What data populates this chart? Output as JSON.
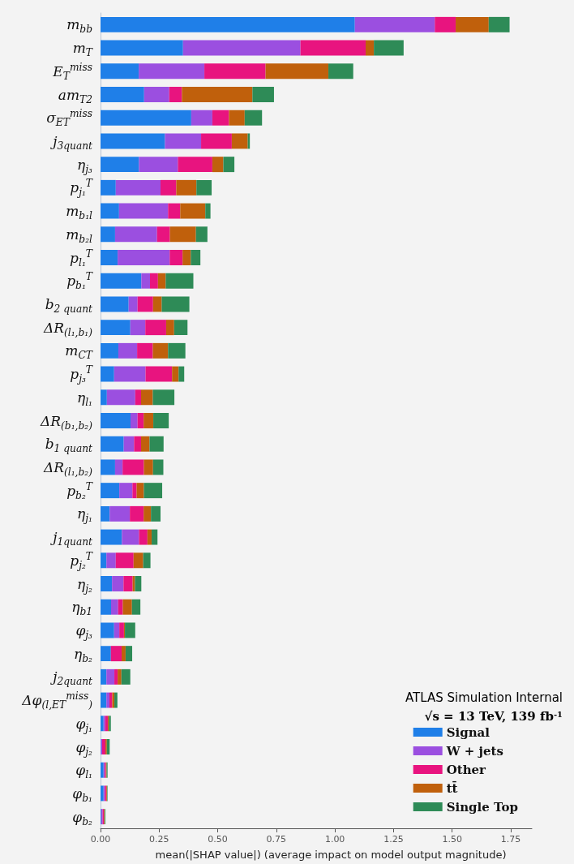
{
  "chart_data": {
    "type": "bar",
    "orientation": "horizontal",
    "stacked": true,
    "xlabel": "mean(|SHAP value|) (average impact on model output magnitude)",
    "categories": [
      "m$_{bb}$",
      "m$_{T}$",
      "E$_{T}$$^{miss}$",
      "am$_{T2}$",
      "σ$_{E}$$_{T}$$^{miss}$",
      "j$_{3quant}$",
      "η$_{j₃}$",
      "p$_{j₁}$$^{T}$",
      "m$_{b₁l}$",
      "m$_{b₂l}$",
      "p$_{l₁}$$^{T}$",
      "p$_{b₁}$$^{T}$",
      "b$_{2 quant}$",
      "ΔR$_{(l₁,b₁)}$",
      "m$_{CT}$",
      "p$_{j₃}$$^{T}$",
      "η$_{l₁}$",
      "ΔR$_{(b₁,b₂)}$",
      "b$_{1 quant}$",
      "ΔR$_{(l₁,b₂)}$",
      "p$_{b₂}$$^{T}$",
      "η$_{j₁}$",
      "j$_{1quant}$",
      "p$_{j₂}$$^{T}$",
      "η$_{j₂}$",
      "η$_{b1}$",
      "φ$_{j₃}$",
      "η$_{b₂}$",
      "j$_{2quant}$",
      "Δφ$_{(l,E}$$_{T}$$^{miss}$$_{)}$",
      "φ$_{j₁}$",
      "φ$_{j₂}$",
      "φ$_{l₁}$",
      "φ$_{b₁}$",
      "φ$_{b₂}$"
    ],
    "series": [
      {
        "name": "Signal",
        "color": "#1f7fe8",
        "values": [
          1.085,
          0.352,
          0.163,
          0.186,
          0.387,
          0.275,
          0.164,
          0.065,
          0.079,
          0.062,
          0.073,
          0.174,
          0.12,
          0.127,
          0.076,
          0.058,
          0.027,
          0.128,
          0.099,
          0.062,
          0.08,
          0.039,
          0.091,
          0.025,
          0.049,
          0.045,
          0.058,
          0.044,
          0.025,
          0.025,
          0.013,
          0.002,
          0.013,
          0.013,
          0.003
        ]
      },
      {
        "name": "W + jets",
        "color": "#9b4fe0",
        "values": [
          0.341,
          0.501,
          0.28,
          0.107,
          0.09,
          0.154,
          0.166,
          0.191,
          0.209,
          0.179,
          0.222,
          0.037,
          0.038,
          0.064,
          0.08,
          0.134,
          0.121,
          0.03,
          0.044,
          0.032,
          0.056,
          0.086,
          0.073,
          0.04,
          0.049,
          0.03,
          0.022,
          0.0,
          0.034,
          0.013,
          0.007,
          0.005,
          0.005,
          0.006,
          0.006
        ]
      },
      {
        "name": "Other",
        "color": "#e8147f",
        "values": [
          0.089,
          0.278,
          0.261,
          0.054,
          0.071,
          0.131,
          0.147,
          0.067,
          0.052,
          0.055,
          0.055,
          0.034,
          0.066,
          0.089,
          0.067,
          0.113,
          0.025,
          0.026,
          0.03,
          0.091,
          0.018,
          0.059,
          0.036,
          0.076,
          0.039,
          0.02,
          0.02,
          0.046,
          0.014,
          0.012,
          0.011,
          0.014,
          0.005,
          0.006,
          0.006
        ]
      },
      {
        "name": "tt̄",
        "color": "#c0600c",
        "values": [
          0.141,
          0.035,
          0.268,
          0.301,
          0.067,
          0.068,
          0.047,
          0.086,
          0.107,
          0.111,
          0.035,
          0.033,
          0.037,
          0.034,
          0.065,
          0.028,
          0.05,
          0.041,
          0.036,
          0.039,
          0.031,
          0.031,
          0.018,
          0.041,
          0.01,
          0.039,
          0.004,
          0.017,
          0.016,
          0.009,
          0.005,
          0.006,
          0.003,
          0.003,
          0.003
        ]
      },
      {
        "name": "Single Top",
        "color": "#2e8b57",
        "values": [
          0.089,
          0.127,
          0.106,
          0.092,
          0.074,
          0.009,
          0.047,
          0.065,
          0.022,
          0.049,
          0.041,
          0.118,
          0.118,
          0.057,
          0.074,
          0.024,
          0.092,
          0.066,
          0.06,
          0.044,
          0.078,
          0.041,
          0.025,
          0.031,
          0.027,
          0.036,
          0.044,
          0.028,
          0.038,
          0.013,
          0.008,
          0.012,
          0.004,
          0.002,
          0.003
        ]
      }
    ],
    "xlim": [
      0,
      1.84
    ],
    "xticks": [
      {
        "value": 0,
        "label": "0.00"
      },
      {
        "value": 0.25,
        "label": "0.25"
      },
      {
        "value": 0.5,
        "label": "0.50"
      },
      {
        "value": 0.75,
        "label": "0.75"
      },
      {
        "value": 1,
        "label": "1.00"
      },
      {
        "value": 1.25,
        "label": "1.25"
      },
      {
        "value": 1.5,
        "label": "1.50"
      },
      {
        "value": 1.75,
        "label": "1.75"
      }
    ],
    "legend": "bottom right",
    "annotations": [
      "ATLAS Simulation Internal",
      "√s = 13 TeV, 139 fb$^{-1}$"
    ]
  }
}
